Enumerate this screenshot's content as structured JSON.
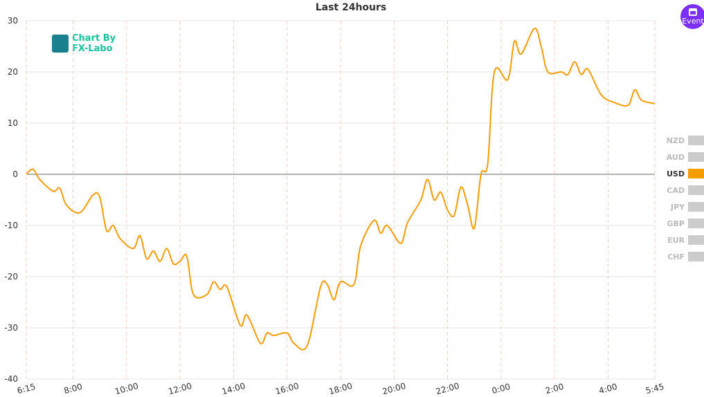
{
  "chart_data": {
    "type": "line",
    "title": "Last 24hours",
    "watermark": [
      "Chart By",
      "FX-Labo"
    ],
    "x": [
      "6:15",
      "6:30",
      "6:45",
      "7:15",
      "7:30",
      "7:45",
      "8:15",
      "8:45",
      "9:00",
      "9:15",
      "9:30",
      "9:45",
      "10:15",
      "10:30",
      "10:45",
      "11:00",
      "11:15",
      "11:30",
      "11:45",
      "12:00",
      "12:15",
      "12:30",
      "13:00",
      "13:15",
      "13:30",
      "13:45",
      "14:15",
      "14:30",
      "15:00",
      "15:15",
      "15:30",
      "16:00",
      "16:15",
      "16:45",
      "17:15",
      "17:30",
      "17:45",
      "18:00",
      "18:30",
      "18:45",
      "19:15",
      "19:30",
      "19:45",
      "20:15",
      "20:30",
      "21:00",
      "21:15",
      "21:30",
      "21:45",
      "22:00",
      "22:15",
      "22:30",
      "22:45",
      "23:00",
      "23:15",
      "23:30",
      "23:45",
      "0:15",
      "0:30",
      "0:45",
      "1:15",
      "1:30",
      "1:45",
      "2:15",
      "2:30",
      "2:45",
      "3:00",
      "3:15",
      "3:45",
      "4:15",
      "4:45",
      "5:00",
      "5:15",
      "5:45"
    ],
    "series": [
      {
        "name": "USD",
        "color": "#f59c00",
        "values": [
          0,
          1,
          -1,
          -3.3,
          -2.7,
          -6,
          -7.5,
          -4,
          -4.5,
          -11,
          -10,
          -12.5,
          -14.5,
          -12,
          -16.5,
          -15,
          -17,
          -14.5,
          -17.5,
          -17,
          -16,
          -23.5,
          -23.5,
          -21,
          -22.5,
          -22,
          -29.5,
          -27.5,
          -33,
          -31,
          -31.5,
          -31,
          -33,
          -33.5,
          -22,
          -21.5,
          -24.5,
          -21,
          -21.5,
          -14,
          -9,
          -11.5,
          -10,
          -13.5,
          -9.5,
          -5,
          -1,
          -5,
          -3.5,
          -7,
          -8,
          -2.5,
          -6,
          -10.5,
          0,
          2,
          20,
          18.5,
          26,
          23.5,
          28.5,
          25,
          20,
          20,
          19.5,
          22,
          19.5,
          20.5,
          15.5,
          14,
          13.5,
          16.5,
          14.5,
          13.8
        ]
      }
    ],
    "xlim": [
      "6:15",
      "5:45"
    ],
    "xticks": [
      "6:15",
      "8:00",
      "10:00",
      "12:00",
      "14:00",
      "16:00",
      "18:00",
      "20:00",
      "22:00",
      "0:00",
      "2:00",
      "4:00",
      "5:45"
    ],
    "ylim": [
      -40,
      30
    ],
    "yticks": [
      -40,
      -30,
      -20,
      -10,
      0,
      10,
      20,
      30
    ],
    "grid": true,
    "legend": "right",
    "legend_items": [
      {
        "name": "NZD",
        "color": "#cccccc"
      },
      {
        "name": "AUD",
        "color": "#cccccc"
      },
      {
        "name": "USD",
        "color": "#f59c00"
      },
      {
        "name": "CAD",
        "color": "#cccccc"
      },
      {
        "name": "JPY",
        "color": "#cccccc"
      },
      {
        "name": "GBP",
        "color": "#cccccc"
      },
      {
        "name": "EUR",
        "color": "#cccccc"
      },
      {
        "name": "CHF",
        "color": "#cccccc"
      }
    ],
    "button": "Event"
  }
}
